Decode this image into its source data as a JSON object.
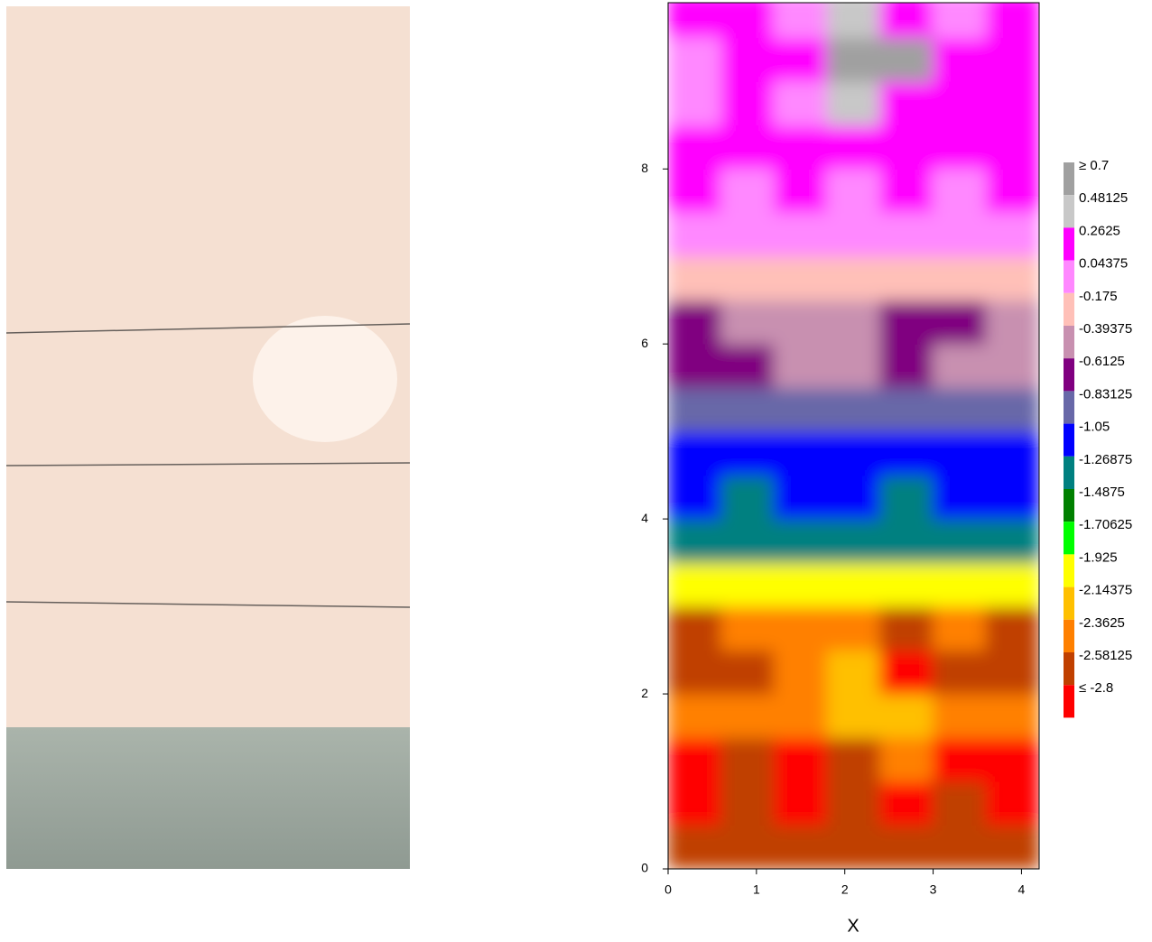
{
  "chart_data": {
    "type": "contour",
    "xlabel": "X",
    "xlim": [
      0,
      4.2
    ],
    "ylim": [
      0,
      9.9
    ],
    "xticks": [
      0,
      1,
      2,
      3,
      4
    ],
    "yticks": [
      0,
      2,
      4,
      6,
      8
    ],
    "x": [
      0.3,
      0.9,
      1.5,
      2.1,
      2.7,
      3.3,
      3.9
    ],
    "y": [
      0.25,
      0.75,
      1.25,
      1.75,
      2.25,
      2.75,
      3.25,
      3.75,
      4.25,
      4.75,
      5.25,
      5.75,
      6.25,
      6.75,
      7.25,
      7.75,
      8.25,
      8.75,
      9.25,
      9.75
    ],
    "z": [
      [
        -2.5,
        -2.45,
        -2.5,
        -2.45,
        -2.4,
        -2.45,
        -2.5
      ],
      [
        -2.6,
        -2.5,
        -2.6,
        -2.4,
        -2.6,
        -2.5,
        -2.6
      ],
      [
        -2.6,
        -2.4,
        -2.7,
        -2.4,
        -2.3,
        -2.6,
        -2.6
      ],
      [
        -2.3,
        -2.3,
        -2.3,
        -2.1,
        -2.0,
        -2.3,
        -2.3
      ],
      [
        -2.4,
        -2.5,
        -2.2,
        -2.0,
        -2.9,
        -2.4,
        -2.5
      ],
      [
        -2.5,
        -2.3,
        -2.3,
        -2.2,
        -2.5,
        -2.3,
        -2.4
      ],
      [
        -1.8,
        -1.8,
        -1.8,
        -1.8,
        -1.8,
        -1.8,
        -1.8
      ],
      [
        -1.2,
        -1.1,
        -1.2,
        -1.2,
        -1.1,
        -1.2,
        -1.1
      ],
      [
        -1.0,
        -1.1,
        -1.0,
        -1.0,
        -1.1,
        -1.0,
        -1.0
      ],
      [
        -1.0,
        -0.95,
        -0.95,
        -0.95,
        -0.95,
        -0.95,
        -1.0
      ],
      [
        -0.75,
        -0.7,
        -0.7,
        -0.7,
        -0.7,
        -0.7,
        -0.7
      ],
      [
        -0.5,
        -0.5,
        -0.3,
        -0.3,
        -0.4,
        -0.3,
        -0.2
      ],
      [
        -0.5,
        -0.3,
        -0.2,
        -0.3,
        -0.5,
        -0.5,
        -0.3
      ],
      [
        -0.1,
        -0.1,
        -0.1,
        -0.1,
        -0.1,
        -0.1,
        -0.1
      ],
      [
        0.1,
        0.1,
        0.1,
        0.1,
        0.1,
        0.1,
        0.1
      ],
      [
        0.3,
        0.25,
        0.3,
        0.2,
        0.3,
        0.25,
        0.3
      ],
      [
        0.3,
        0.3,
        0.3,
        0.3,
        0.3,
        0.3,
        0.3
      ],
      [
        0.2,
        0.3,
        0.25,
        0.5,
        0.4,
        0.3,
        0.3
      ],
      [
        0.1,
        0.3,
        0.3,
        0.8,
        0.8,
        0.3,
        0.3
      ],
      [
        0.3,
        0.3,
        0.1,
        0.5,
        0.4,
        0.2,
        0.3
      ]
    ],
    "levels": [
      {
        "value": 0.7,
        "label": "≥ 0.7"
      },
      0.48125,
      0.2625,
      0.04375,
      -0.175,
      -0.39375,
      -0.6125,
      -0.83125,
      -1.05,
      -1.26875,
      -1.4875,
      -1.70625,
      -1.925,
      -2.14375,
      -2.3625,
      -2.58125,
      {
        "value": -2.8,
        "label": "≤ -2.8"
      }
    ],
    "colors": [
      "#a0a0a0",
      "#c8c8c8",
      "#ff00ff",
      "#ff88ff",
      "#ffc0b8",
      "#c890b0",
      "#800080",
      "#6868a8",
      "#0000ff",
      "#008080",
      "#008000",
      "#00ff00",
      "#ffff00",
      "#ffc000",
      "#ff8000",
      "#c04000",
      "#ff0000"
    ]
  }
}
